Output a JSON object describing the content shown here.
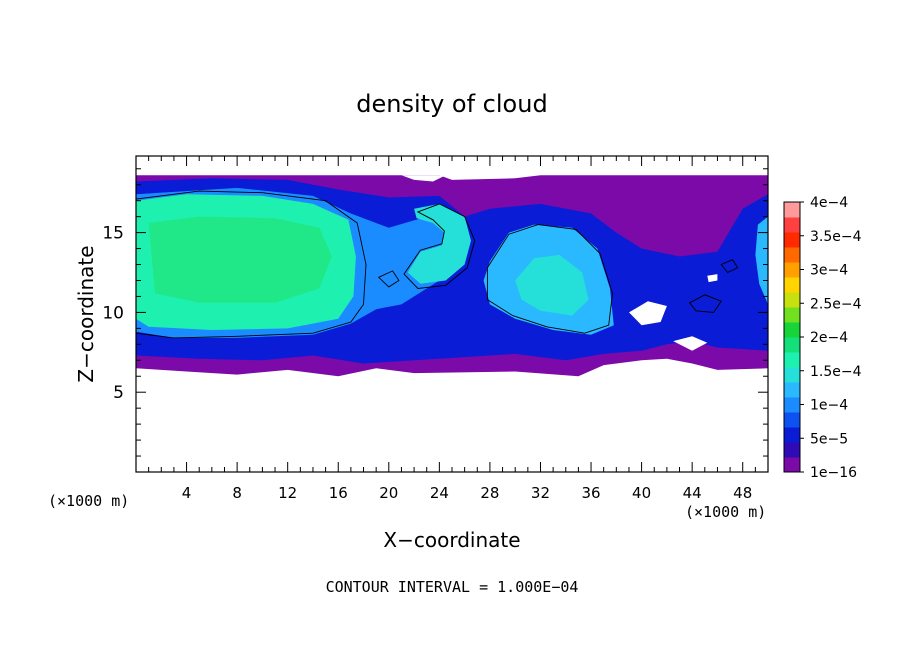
{
  "chart_data": {
    "type": "heatmap",
    "title": "density of cloud",
    "xlabel": "X−coordinate",
    "ylabel": "Z−coordinate",
    "x_unit": "(×1000 m)",
    "y_unit": "(×1000 m)",
    "xlim": [
      0,
      50
    ],
    "ylim": [
      0,
      19.8
    ],
    "x_ticks": [
      "4",
      "8",
      "12",
      "16",
      "20",
      "24",
      "28",
      "32",
      "36",
      "40",
      "44",
      "48"
    ],
    "y_ticks": [
      "5",
      "10",
      "15"
    ],
    "footer": "CONTOUR INTERVAL = 1.000E−04",
    "colorbar": {
      "labels": [
        {
          "value": 0.0004,
          "text": "4e−4"
        },
        {
          "value": 0.00035,
          "text": "3.5e−4"
        },
        {
          "value": 0.0003,
          "text": "3e−4"
        },
        {
          "value": 0.00025,
          "text": "2.5e−4"
        },
        {
          "value": 0.0002,
          "text": "2e−4"
        },
        {
          "value": 0.00015,
          "text": "1.5e−4"
        },
        {
          "value": 0.0001,
          "text": "1e−4"
        },
        {
          "value": 5e-05,
          "text": "5e−5"
        },
        {
          "value": 1e-16,
          "text": "1e−16"
        }
      ],
      "colors": [
        "#7b0aa8",
        "#2f0bb6",
        "#0a1cd6",
        "#0d52f0",
        "#1a8cff",
        "#2ab8ff",
        "#25e0d8",
        "#1ef0b0",
        "#14e07a",
        "#17d43a",
        "#70e020",
        "#c8e010",
        "#ffd400",
        "#ffa000",
        "#ff6a00",
        "#ff2a00",
        "#ff4040",
        "#ff9a9a"
      ]
    },
    "regions": [
      {
        "name": "main-cloud-top",
        "color": "#7b0aa8",
        "points": [
          [
            0,
            18.6
          ],
          [
            24,
            18.6
          ],
          [
            25,
            18.3
          ],
          [
            30,
            18.4
          ],
          [
            32,
            18.6
          ],
          [
            50,
            18.6
          ],
          [
            50,
            6.5
          ],
          [
            46,
            6.4
          ],
          [
            44,
            6.8
          ],
          [
            42,
            7.1
          ],
          [
            40,
            7.0
          ],
          [
            37,
            6.7
          ],
          [
            35,
            6.0
          ],
          [
            30,
            6.3
          ],
          [
            22,
            6.2
          ],
          [
            19,
            6.5
          ],
          [
            16,
            6.0
          ],
          [
            12,
            6.4
          ],
          [
            8,
            6.1
          ],
          [
            4,
            6.3
          ],
          [
            0,
            6.5
          ]
        ]
      },
      {
        "name": "blue-zone",
        "color": "#0a1cd6",
        "points": [
          [
            0,
            18.2
          ],
          [
            6,
            18.4
          ],
          [
            12,
            18.3
          ],
          [
            16,
            17.7
          ],
          [
            20,
            17.2
          ],
          [
            24,
            17.3
          ],
          [
            26,
            16.0
          ],
          [
            28,
            16.5
          ],
          [
            32,
            16.8
          ],
          [
            36,
            16.2
          ],
          [
            38,
            15.0
          ],
          [
            40,
            14.0
          ],
          [
            43,
            13.5
          ],
          [
            46,
            13.8
          ],
          [
            48,
            16.5
          ],
          [
            50,
            17.4
          ],
          [
            50,
            7.6
          ],
          [
            46,
            7.8
          ],
          [
            44,
            8.2
          ],
          [
            42,
            8.0
          ],
          [
            40,
            7.6
          ],
          [
            37,
            7.4
          ],
          [
            34,
            7.0
          ],
          [
            30,
            7.4
          ],
          [
            26,
            7.2
          ],
          [
            22,
            7.0
          ],
          [
            18,
            6.8
          ],
          [
            14,
            7.3
          ],
          [
            10,
            7.0
          ],
          [
            5,
            7.1
          ],
          [
            0,
            7.3
          ]
        ]
      },
      {
        "name": "mid-blue",
        "color": "#1a8cff",
        "points": [
          [
            0,
            17.4
          ],
          [
            8,
            17.8
          ],
          [
            14,
            17.3
          ],
          [
            17,
            16.2
          ],
          [
            20,
            15.3
          ],
          [
            23,
            16.0
          ],
          [
            25,
            15.0
          ],
          [
            25,
            12.5
          ],
          [
            23,
            11.5
          ],
          [
            21,
            10.5
          ],
          [
            19,
            10.2
          ],
          [
            17,
            9.3
          ],
          [
            14,
            8.6
          ],
          [
            8,
            8.4
          ],
          [
            3,
            8.4
          ],
          [
            0,
            8.8
          ]
        ]
      },
      {
        "name": "left-core",
        "color": "#1ef0b0",
        "points": [
          [
            0,
            17.0
          ],
          [
            4,
            17.4
          ],
          [
            10,
            17.3
          ],
          [
            14,
            16.8
          ],
          [
            16.8,
            15.8
          ],
          [
            17.4,
            13.5
          ],
          [
            17.2,
            11.0
          ],
          [
            16.0,
            9.6
          ],
          [
            12,
            9.0
          ],
          [
            6,
            8.9
          ],
          [
            1,
            9.1
          ],
          [
            0,
            9.6
          ]
        ]
      },
      {
        "name": "left-core-inner",
        "color": "#20e888",
        "points": [
          [
            1,
            15.6
          ],
          [
            5,
            16.0
          ],
          [
            11,
            15.9
          ],
          [
            14.5,
            15.3
          ],
          [
            15.5,
            13.5
          ],
          [
            14.5,
            11.5
          ],
          [
            11,
            10.6
          ],
          [
            5,
            10.6
          ],
          [
            1.5,
            11.2
          ]
        ]
      },
      {
        "name": "swirl-upper",
        "color": "#25e0d8",
        "points": [
          [
            22,
            16.5
          ],
          [
            24,
            16.8
          ],
          [
            26,
            16.0
          ],
          [
            26.5,
            14.5
          ],
          [
            26,
            13.0
          ],
          [
            24.5,
            12.0
          ],
          [
            22.5,
            11.8
          ],
          [
            21.5,
            12.5
          ],
          [
            22.5,
            13.8
          ],
          [
            24.2,
            14.2
          ],
          [
            24.4,
            15.0
          ],
          [
            23.5,
            15.6
          ],
          [
            22.2,
            15.9
          ]
        ]
      },
      {
        "name": "right-bubble",
        "color": "#2ab8ff",
        "points": [
          [
            28,
            13.2
          ],
          [
            29.5,
            15.0
          ],
          [
            31.5,
            15.5
          ],
          [
            34.5,
            15.3
          ],
          [
            36.5,
            14.0
          ],
          [
            37.5,
            11.5
          ],
          [
            37.8,
            9.2
          ],
          [
            36,
            8.6
          ],
          [
            33,
            8.9
          ],
          [
            30,
            9.6
          ],
          [
            28,
            10.5
          ],
          [
            27.5,
            12.0
          ]
        ]
      },
      {
        "name": "right-bubble-core",
        "color": "#25e0d8",
        "points": [
          [
            30,
            12.0
          ],
          [
            31.5,
            13.4
          ],
          [
            33.5,
            13.6
          ],
          [
            35.3,
            12.5
          ],
          [
            35.8,
            10.8
          ],
          [
            34.5,
            9.8
          ],
          [
            32,
            10.1
          ],
          [
            30.5,
            10.8
          ]
        ]
      },
      {
        "name": "far-right-patch",
        "color": "#2ab8ff",
        "points": [
          [
            49.2,
            15.5
          ],
          [
            50,
            16.0
          ],
          [
            50,
            10.5
          ],
          [
            49.3,
            11.8
          ],
          [
            49.0,
            13.6
          ]
        ]
      },
      {
        "name": "gap-1",
        "color": "#ffffff",
        "points": [
          [
            21,
            18.6
          ],
          [
            22,
            18.3
          ],
          [
            23.5,
            18.2
          ],
          [
            24.5,
            18.6
          ]
        ]
      },
      {
        "name": "gap-2",
        "color": "#ffffff",
        "points": [
          [
            39,
            10.0
          ],
          [
            40.5,
            10.7
          ],
          [
            42,
            10.4
          ],
          [
            41.5,
            9.4
          ],
          [
            40,
            9.2
          ]
        ]
      },
      {
        "name": "gap-3",
        "color": "#ffffff",
        "points": [
          [
            42.5,
            8.2
          ],
          [
            44,
            8.5
          ],
          [
            45.2,
            8.1
          ],
          [
            44,
            7.6
          ]
        ]
      },
      {
        "name": "gap-4",
        "color": "#ffffff",
        "points": [
          [
            45.2,
            12.3
          ],
          [
            46.0,
            12.4
          ],
          [
            46.0,
            12.0
          ],
          [
            45.3,
            11.9
          ]
        ]
      }
    ],
    "contours": [
      [
        [
          0,
          17.1
        ],
        [
          5,
          17.6
        ],
        [
          10,
          17.5
        ],
        [
          15,
          17.0
        ],
        [
          17.5,
          15.6
        ],
        [
          18.2,
          13.0
        ],
        [
          18.0,
          10.5
        ],
        [
          17.0,
          9.4
        ],
        [
          14,
          8.7
        ],
        [
          8,
          8.5
        ],
        [
          3,
          8.4
        ],
        [
          0,
          8.7
        ]
      ],
      [
        [
          22.3,
          16.3
        ],
        [
          24,
          16.8
        ],
        [
          26,
          16.0
        ],
        [
          26.8,
          14.5
        ],
        [
          26.2,
          12.8
        ],
        [
          24.5,
          11.7
        ],
        [
          22.3,
          11.5
        ],
        [
          21.2,
          12.4
        ],
        [
          22.5,
          13.9
        ],
        [
          24.2,
          14.3
        ],
        [
          24.4,
          15.1
        ],
        [
          23.5,
          15.8
        ]
      ],
      [
        [
          27.8,
          12.8
        ],
        [
          29.5,
          14.9
        ],
        [
          31.8,
          15.5
        ],
        [
          34.8,
          15.2
        ],
        [
          36.7,
          13.7
        ],
        [
          37.7,
          11.2
        ],
        [
          37.4,
          9.2
        ],
        [
          35.5,
          8.7
        ],
        [
          32.5,
          9.1
        ],
        [
          29.8,
          9.8
        ],
        [
          27.8,
          10.8
        ]
      ],
      [
        [
          19.2,
          12.2
        ],
        [
          20.3,
          12.6
        ],
        [
          20.8,
          12.0
        ],
        [
          20.0,
          11.6
        ]
      ],
      [
        [
          43.8,
          10.6
        ],
        [
          45.0,
          11.1
        ],
        [
          46.3,
          10.7
        ],
        [
          45.7,
          10.0
        ],
        [
          44.3,
          10.1
        ]
      ],
      [
        [
          46.3,
          13.0
        ],
        [
          47.2,
          13.3
        ],
        [
          47.6,
          12.8
        ],
        [
          46.8,
          12.5
        ]
      ]
    ]
  }
}
